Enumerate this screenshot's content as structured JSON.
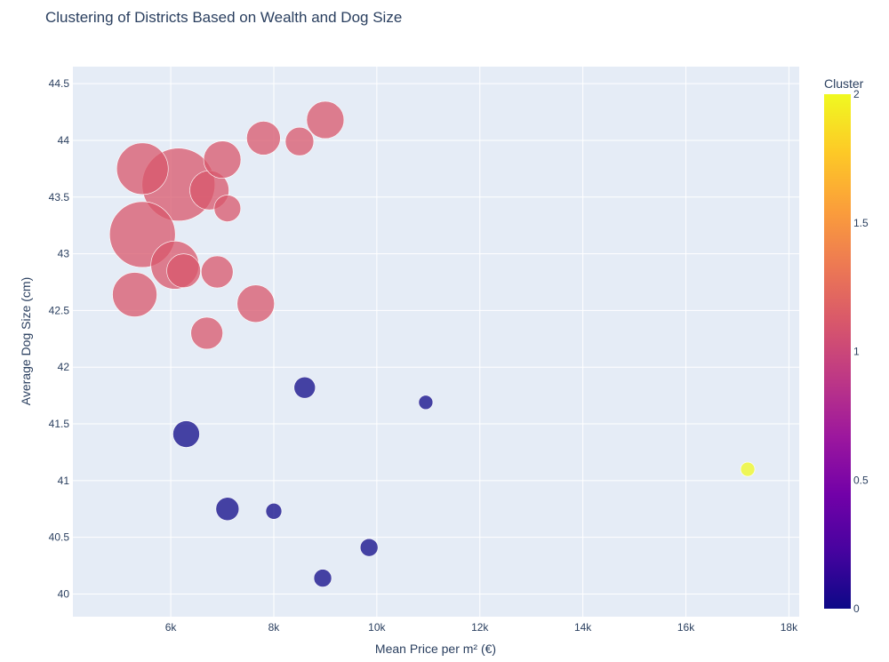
{
  "chart_data": {
    "type": "scatter",
    "title": "Clustering of Districts Based on Wealth and Dog Size",
    "xlabel": "Mean Price per m² (€)",
    "ylabel": "Average Dog Size (cm)",
    "xlim": [
      4100,
      18200
    ],
    "ylim": [
      39.8,
      44.65
    ],
    "x_ticks": [
      6000,
      8000,
      10000,
      12000,
      14000,
      16000,
      18000
    ],
    "x_tick_labels": [
      "6k",
      "8k",
      "10k",
      "12k",
      "14k",
      "16k",
      "18k"
    ],
    "y_ticks": [
      40,
      40.5,
      41,
      41.5,
      42,
      42.5,
      43,
      43.5,
      44,
      44.5
    ],
    "y_tick_labels": [
      "40",
      "40.5",
      "41",
      "41.5",
      "42",
      "42.5",
      "43",
      "43.5",
      "44",
      "44.5"
    ],
    "grid": true,
    "colorbar": {
      "title": "Cluster",
      "range": [
        0,
        2
      ],
      "ticks": [
        0,
        0.5,
        1,
        1.5,
        2
      ],
      "tick_labels": [
        "0",
        "0.5",
        "1",
        "1.5",
        "2"
      ],
      "colorscale": [
        "#0d0887",
        "#46039f",
        "#7201a8",
        "#9c179e",
        "#bd3786",
        "#d8576b",
        "#ed7953",
        "#fb9f3a",
        "#fdca26",
        "#f0f921"
      ]
    },
    "points": [
      {
        "x": 6150,
        "y": 43.61,
        "cluster": 1,
        "size": 41
      },
      {
        "x": 5450,
        "y": 43.17,
        "cluster": 1,
        "size": 37
      },
      {
        "x": 5450,
        "y": 43.75,
        "cluster": 1,
        "size": 29
      },
      {
        "x": 6080,
        "y": 42.9,
        "cluster": 1,
        "size": 27
      },
      {
        "x": 5300,
        "y": 42.64,
        "cluster": 1,
        "size": 25
      },
      {
        "x": 6750,
        "y": 43.56,
        "cluster": 1,
        "size": 22
      },
      {
        "x": 7000,
        "y": 43.83,
        "cluster": 1,
        "size": 21
      },
      {
        "x": 7650,
        "y": 42.56,
        "cluster": 1,
        "size": 21
      },
      {
        "x": 9000,
        "y": 44.18,
        "cluster": 1,
        "size": 21
      },
      {
        "x": 6250,
        "y": 42.85,
        "cluster": 1,
        "size": 19
      },
      {
        "x": 7800,
        "y": 44.02,
        "cluster": 1,
        "size": 19
      },
      {
        "x": 6900,
        "y": 42.84,
        "cluster": 1,
        "size": 18
      },
      {
        "x": 6700,
        "y": 42.3,
        "cluster": 1,
        "size": 18
      },
      {
        "x": 8500,
        "y": 43.99,
        "cluster": 1,
        "size": 16
      },
      {
        "x": 7100,
        "y": 43.4,
        "cluster": 1,
        "size": 15
      },
      {
        "x": 6300,
        "y": 41.41,
        "cluster": 0,
        "size": 15
      },
      {
        "x": 7100,
        "y": 40.75,
        "cluster": 0,
        "size": 13
      },
      {
        "x": 8600,
        "y": 41.82,
        "cluster": 0,
        "size": 12
      },
      {
        "x": 8950,
        "y": 40.14,
        "cluster": 0,
        "size": 10
      },
      {
        "x": 9850,
        "y": 40.41,
        "cluster": 0,
        "size": 10
      },
      {
        "x": 8000,
        "y": 40.73,
        "cluster": 0,
        "size": 9
      },
      {
        "x": 10950,
        "y": 41.69,
        "cluster": 0,
        "size": 8
      },
      {
        "x": 17200,
        "y": 41.1,
        "cluster": 2,
        "size": 8
      }
    ]
  }
}
